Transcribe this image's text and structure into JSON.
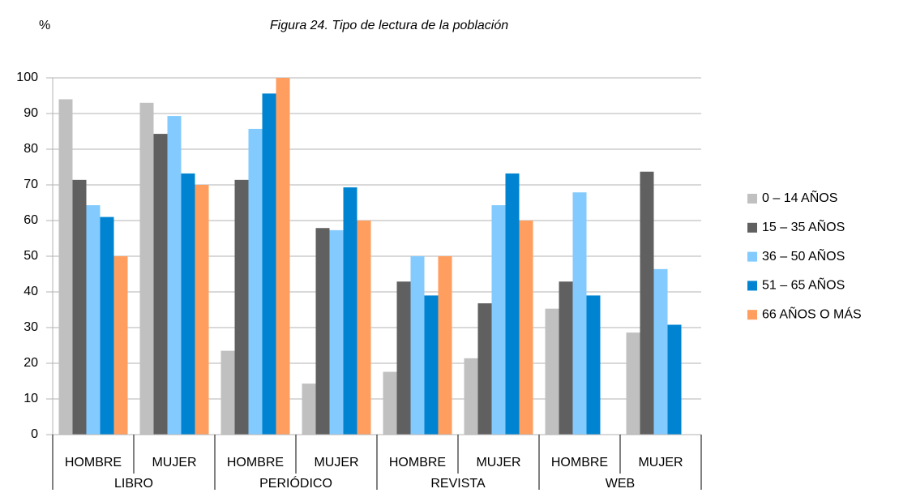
{
  "chart_data": {
    "type": "bar",
    "title": "Figura 24. Tipo de lectura de la población",
    "y_label": "%",
    "categories": [
      "HOMBRE",
      "MUJER",
      "HOMBRE",
      "MUJER",
      "HOMBRE",
      "MUJER",
      "HOMBRE",
      "MUJER"
    ],
    "groups": [
      "LIBRO",
      "PERIÓDICO",
      "REVISTA",
      "WEB"
    ],
    "series": [
      {
        "name": "0 – 14 AÑOS",
        "color": "#c0c0c0",
        "values": [
          94,
          93,
          23.5,
          14.3,
          17.6,
          21.4,
          35.3,
          28.6
        ]
      },
      {
        "name": "15 – 35 AÑOS",
        "color": "#606060",
        "values": [
          71.4,
          84.3,
          71.4,
          57.9,
          42.9,
          36.8,
          42.9,
          73.7
        ]
      },
      {
        "name": "36 – 50 AÑOS",
        "color": "#83caff",
        "values": [
          64.3,
          89.3,
          85.7,
          57.3,
          50,
          64.3,
          67.9,
          46.4
        ]
      },
      {
        "name": "51 – 65 AÑOS",
        "color": "#0084d1",
        "values": [
          61,
          73.2,
          95.6,
          69.3,
          39,
          73.2,
          39,
          30.8
        ]
      },
      {
        "name": "66 AÑOS O MÁS",
        "color": "#ff9e5e",
        "values": [
          50,
          70,
          100,
          60,
          50,
          60,
          null,
          null
        ]
      }
    ],
    "ylim": [
      0,
      100
    ],
    "yticks": [
      0,
      10,
      20,
      30,
      40,
      50,
      60,
      70,
      80,
      90,
      100
    ],
    "grid": true,
    "legend": "right"
  }
}
